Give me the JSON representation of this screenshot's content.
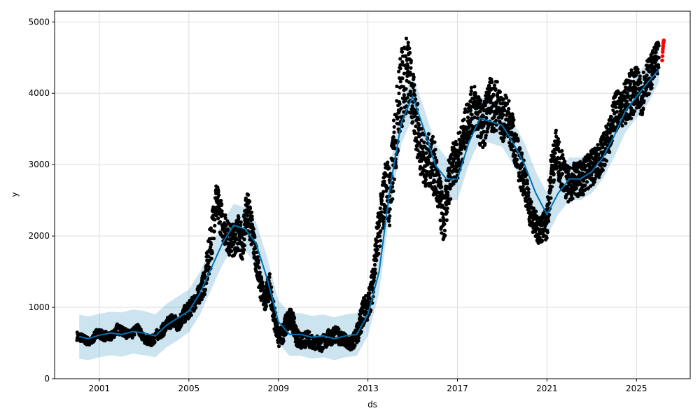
{
  "chart_data": {
    "type": "scatter",
    "title": "",
    "xlabel": "ds",
    "ylabel": "y",
    "xlim": [
      1999.0,
      2027.4
    ],
    "ylim": [
      0,
      5150
    ],
    "grid": true,
    "x_ticks": [
      {
        "value": 2001,
        "label": "2001"
      },
      {
        "value": 2005,
        "label": "2005"
      },
      {
        "value": 2009,
        "label": "2009"
      },
      {
        "value": 2013,
        "label": "2013"
      },
      {
        "value": 2017,
        "label": "2017"
      },
      {
        "value": 2021,
        "label": "2021"
      },
      {
        "value": 2025,
        "label": "2025"
      }
    ],
    "y_ticks": [
      {
        "value": 0,
        "label": "0"
      },
      {
        "value": 1000,
        "label": "1000"
      },
      {
        "value": 2000,
        "label": "2000"
      },
      {
        "value": 3000,
        "label": "3000"
      },
      {
        "value": 4000,
        "label": "4000"
      },
      {
        "value": 5000,
        "label": "5000"
      }
    ],
    "colors": {
      "observed": "#000000",
      "forecast": "#0072B2",
      "uncertainty": "#0072B2",
      "highlight": "#ff0000"
    },
    "forecast_series": {
      "x": [
        2000.1,
        2000.5,
        2001.0,
        2001.5,
        2002.0,
        2002.5,
        2003.0,
        2003.5,
        2004.0,
        2004.5,
        2005.0,
        2005.5,
        2006.0,
        2006.5,
        2007.0,
        2007.5,
        2008.0,
        2008.5,
        2009.0,
        2009.5,
        2010.0,
        2010.5,
        2011.0,
        2011.5,
        2012.0,
        2012.5,
        2013.0,
        2013.5,
        2014.0,
        2014.5,
        2015.0,
        2015.5,
        2016.0,
        2016.5,
        2017.0,
        2017.5,
        2018.0,
        2018.5,
        2019.0,
        2019.5,
        2020.0,
        2020.5,
        2021.0,
        2021.5,
        2022.0,
        2022.5,
        2023.0,
        2023.5,
        2024.0,
        2024.5,
        2025.0,
        2025.5,
        2026.0
      ],
      "yhat": [
        590,
        560,
        610,
        640,
        620,
        660,
        640,
        600,
        750,
        850,
        950,
        1200,
        1550,
        1900,
        2150,
        2100,
        1900,
        1400,
        800,
        620,
        620,
        580,
        600,
        560,
        600,
        620,
        900,
        1500,
        2700,
        3600,
        3950,
        3500,
        3000,
        2800,
        2800,
        3300,
        3650,
        3600,
        3550,
        3300,
        3000,
        2600,
        2300,
        2600,
        2800,
        2800,
        2900,
        3100,
        3400,
        3750,
        3950,
        4150,
        4330
      ],
      "lower": [
        280,
        260,
        300,
        330,
        310,
        350,
        330,
        300,
        440,
        540,
        650,
        900,
        1250,
        1600,
        1850,
        1800,
        1600,
        1100,
        500,
        320,
        320,
        280,
        300,
        260,
        300,
        320,
        600,
        1200,
        2400,
        3300,
        3650,
        3200,
        2700,
        2500,
        2500,
        3000,
        3350,
        3300,
        3250,
        3000,
        2700,
        2300,
        2000,
        2300,
        2500,
        2500,
        2600,
        2800,
        3100,
        3450,
        3650,
        3850,
        4150
      ],
      "upper": [
        900,
        870,
        910,
        940,
        930,
        970,
        950,
        900,
        1050,
        1150,
        1250,
        1500,
        1850,
        2200,
        2450,
        2400,
        2200,
        1700,
        1100,
        920,
        920,
        880,
        900,
        860,
        900,
        920,
        1200,
        1800,
        3000,
        3900,
        4250,
        3800,
        3300,
        3100,
        3100,
        3600,
        3950,
        3900,
        3850,
        3600,
        3300,
        2900,
        2600,
        2900,
        3100,
        3100,
        3200,
        3400,
        3700,
        4050,
        4250,
        4450,
        4750
      ]
    },
    "observed_series": {
      "x": [
        2000.0,
        2000.3,
        2000.6,
        2000.9,
        2001.2,
        2001.5,
        2001.8,
        2002.1,
        2002.4,
        2002.7,
        2003.0,
        2003.3,
        2003.6,
        2003.9,
        2004.2,
        2004.5,
        2004.8,
        2005.1,
        2005.4,
        2005.7,
        2005.95,
        2006.2,
        2006.4,
        2006.6,
        2006.8,
        2007.0,
        2007.2,
        2007.4,
        2007.6,
        2007.8,
        2008.0,
        2008.2,
        2008.4,
        2008.6,
        2008.8,
        2009.0,
        2009.2,
        2009.4,
        2009.6,
        2009.8,
        2010.0,
        2010.3,
        2010.6,
        2010.9,
        2011.2,
        2011.5,
        2011.8,
        2012.0,
        2012.2,
        2012.4,
        2012.6,
        2012.8,
        2013.0,
        2013.2,
        2013.4,
        2013.6,
        2013.8,
        2014.0,
        2014.2,
        2014.4,
        2014.6,
        2014.8,
        2015.0,
        2015.2,
        2015.4,
        2015.6,
        2015.8,
        2016.0,
        2016.2,
        2016.4,
        2016.6,
        2016.8,
        2017.0,
        2017.2,
        2017.4,
        2017.6,
        2017.8,
        2018.0,
        2018.2,
        2018.4,
        2018.6,
        2018.8,
        2019.0,
        2019.2,
        2019.4,
        2019.6,
        2019.8,
        2020.0,
        2020.2,
        2020.4,
        2020.6,
        2020.8,
        2021.0,
        2021.2,
        2021.4,
        2021.6,
        2021.8,
        2022.0,
        2022.2,
        2022.4,
        2022.6,
        2022.8,
        2023.0,
        2023.2,
        2023.4,
        2023.6,
        2023.8,
        2024.0,
        2024.2,
        2024.4,
        2024.6,
        2024.8,
        2025.0,
        2025.2,
        2025.4,
        2025.6,
        2025.8,
        2026.0
      ],
      "y": [
        600,
        560,
        500,
        650,
        600,
        580,
        700,
        650,
        600,
        720,
        560,
        520,
        620,
        700,
        820,
        760,
        900,
        1000,
        1150,
        1350,
        1800,
        2500,
        2300,
        2100,
        1950,
        1950,
        2050,
        1900,
        2400,
        2100,
        1700,
        1300,
        1100,
        1300,
        900,
        550,
        650,
        800,
        850,
        600,
        520,
        560,
        520,
        480,
        560,
        620,
        580,
        520,
        480,
        540,
        700,
        950,
        1000,
        1300,
        1900,
        2300,
        2700,
        2550,
        3300,
        3900,
        4200,
        4300,
        3900,
        3500,
        3200,
        3000,
        3100,
        2900,
        2500,
        2200,
        2700,
        3000,
        3100,
        3300,
        3550,
        3750,
        3800,
        3600,
        3550,
        3900,
        3800,
        3850,
        3600,
        3700,
        3500,
        3250,
        2950,
        2800,
        2400,
        2200,
        2100,
        2100,
        2200,
        2900,
        3200,
        3000,
        2800,
        2700,
        2800,
        2800,
        2800,
        2900,
        2950,
        3000,
        3100,
        3250,
        3400,
        3700,
        3800,
        3850,
        3900,
        4000,
        4100,
        3900,
        4200,
        4250,
        4400,
        4500
      ],
      "spread": [
        60,
        60,
        60,
        60,
        70,
        60,
        70,
        60,
        70,
        60,
        60,
        70,
        80,
        90,
        110,
        110,
        120,
        120,
        130,
        180,
        330,
        300,
        260,
        230,
        230,
        230,
        250,
        250,
        300,
        280,
        200,
        180,
        150,
        200,
        180,
        120,
        150,
        160,
        150,
        130,
        110,
        110,
        110,
        110,
        120,
        120,
        110,
        100,
        100,
        120,
        150,
        200,
        200,
        250,
        300,
        350,
        420,
        480,
        520,
        560,
        600,
        500,
        450,
        400,
        400,
        350,
        400,
        400,
        350,
        330,
        350,
        300,
        300,
        300,
        300,
        320,
        350,
        320,
        330,
        350,
        380,
        350,
        300,
        300,
        300,
        280,
        280,
        280,
        230,
        200,
        200,
        200,
        250,
        300,
        300,
        300,
        250,
        250,
        250,
        250,
        250,
        250,
        250,
        250,
        250,
        280,
        250,
        280,
        280,
        300,
        320,
        350,
        300,
        300,
        250,
        250,
        250,
        250
      ]
    },
    "highlight_points": {
      "x": [
        2026.15,
        2026.16,
        2026.17,
        2026.18,
        2026.19,
        2026.2,
        2026.21,
        2026.22
      ],
      "y": [
        4460,
        4520,
        4580,
        4620,
        4660,
        4700,
        4720,
        4740
      ]
    }
  }
}
